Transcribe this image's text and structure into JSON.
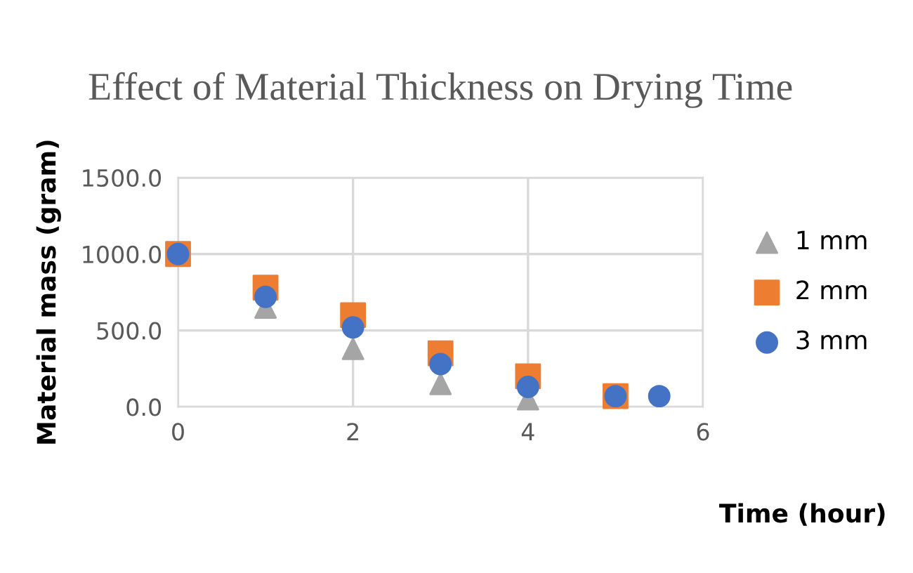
{
  "chart_data": {
    "type": "scatter",
    "title": "Effect of Material Thickness on Drying Time",
    "xlabel": "Time (hour)",
    "ylabel": "Material mass (gram)",
    "series": [
      {
        "name": "1 mm",
        "color": "#a5a5a5",
        "marker": "triangle",
        "x": [
          1,
          2,
          3,
          4
        ],
        "values": [
          650,
          380,
          150,
          50
        ]
      },
      {
        "name": "2 mm",
        "color": "#ed7d31",
        "marker": "square",
        "x": [
          0,
          1,
          2,
          3,
          4,
          5
        ],
        "values": [
          1000,
          780,
          600,
          350,
          200,
          70
        ]
      },
      {
        "name": "3 mm",
        "color": "#4472c4",
        "marker": "circle",
        "x": [
          0,
          1,
          2,
          3,
          4,
          5,
          5.5
        ],
        "values": [
          1000,
          720,
          520,
          280,
          130,
          70,
          70
        ]
      }
    ],
    "xlim": [
      0,
      6
    ],
    "xticks": [
      0,
      2,
      4,
      6
    ],
    "ylim": [
      0,
      1500
    ],
    "yticks": [
      {
        "value": 0,
        "label": "0.0"
      },
      {
        "value": 500,
        "label": "500.0"
      },
      {
        "value": 1000,
        "label": "1000.0"
      },
      {
        "value": 1500,
        "label": "1500.0"
      }
    ],
    "grid": true,
    "legend": "right"
  }
}
